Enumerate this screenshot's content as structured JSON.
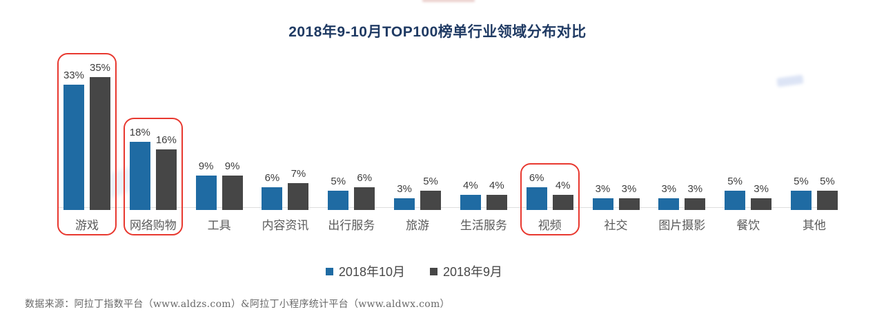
{
  "title": "2018年9-10月TOP100榜单行业领域分布对比",
  "chart_data": {
    "type": "bar",
    "categories": [
      "游戏",
      "网络购物",
      "工具",
      "内容资讯",
      "出行服务",
      "旅游",
      "生活服务",
      "视频",
      "社交",
      "图片摄影",
      "餐饮",
      "其他"
    ],
    "series": [
      {
        "name": "2018年10月",
        "color": "#1F6BA3",
        "values": [
          33,
          18,
          9,
          6,
          5,
          3,
          4,
          6,
          3,
          3,
          5,
          5
        ]
      },
      {
        "name": "2018年9月",
        "color": "#464646",
        "values": [
          35,
          16,
          9,
          7,
          6,
          5,
          4,
          4,
          3,
          3,
          3,
          5
        ]
      }
    ],
    "unit": "%",
    "ylim": [
      0,
      35
    ],
    "grid": false,
    "legend_position": "bottom",
    "highlighted_categories": [
      "游戏",
      "网络购物",
      "视频"
    ],
    "highlight_color": "#E8382F"
  },
  "footer": {
    "source_text": "数据来源：阿拉丁指数平台（www.aldzs.com）&阿拉丁小程序统计平台（www.aldwx.com）"
  },
  "colors": {
    "title": "#1F3A63",
    "axis_line": "#DEDEDE",
    "value_label": "#3D3D3D",
    "category_label": "#5A5A5A"
  }
}
